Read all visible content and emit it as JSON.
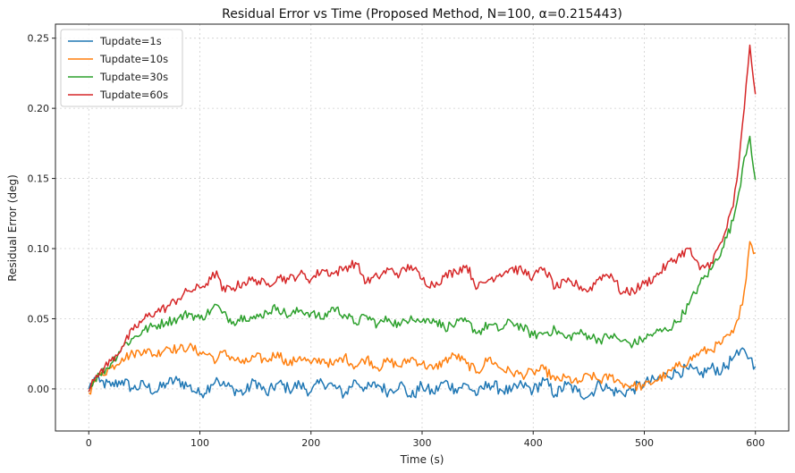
{
  "chart_data": {
    "type": "line",
    "title": "Residual Error vs Time (Proposed Method, N=100, α=0.215443)",
    "xlabel": "Time (s)",
    "ylabel": "Residual Error (deg)",
    "xlim": [
      -30,
      630
    ],
    "ylim": [
      -0.03,
      0.26
    ],
    "xticks": [
      0,
      100,
      200,
      300,
      400,
      500,
      600
    ],
    "xtick_labels": [
      "0",
      "100",
      "200",
      "300",
      "400",
      "500",
      "600"
    ],
    "yticks": [
      0.0,
      0.05,
      0.1,
      0.15,
      0.2,
      0.25
    ],
    "ytick_labels": [
      "0.00",
      "0.05",
      "0.10",
      "0.15",
      "0.20",
      "0.25"
    ],
    "grid": true,
    "legend_position": "top-left",
    "series": [
      {
        "name": "Tupdate=1s",
        "color": "#1f77b4",
        "x": [
          0,
          5,
          10,
          20,
          30,
          40,
          50,
          60,
          70,
          80,
          90,
          100,
          110,
          115,
          120,
          130,
          140,
          150,
          160,
          170,
          180,
          190,
          200,
          210,
          220,
          230,
          240,
          250,
          260,
          270,
          280,
          290,
          300,
          310,
          320,
          330,
          340,
          350,
          360,
          370,
          380,
          390,
          400,
          410,
          420,
          430,
          440,
          450,
          460,
          470,
          480,
          490,
          500,
          510,
          520,
          530,
          540,
          550,
          560,
          570,
          580,
          585,
          590,
          595,
          600
        ],
        "y": [
          0.0,
          0.008,
          0.005,
          0.002,
          0.006,
          0.0,
          0.003,
          -0.002,
          0.004,
          0.006,
          0.002,
          -0.004,
          0.003,
          0.008,
          0.003,
          0.0,
          -0.003,
          0.006,
          -0.004,
          0.004,
          0.0,
          0.003,
          -0.002,
          0.005,
          0.002,
          -0.004,
          0.006,
          0.0,
          0.003,
          -0.002,
          0.004,
          -0.006,
          0.002,
          -0.003,
          0.005,
          0.0,
          0.003,
          -0.004,
          0.004,
          0.0,
          -0.002,
          0.003,
          -0.001,
          0.006,
          -0.004,
          0.003,
          -0.002,
          -0.005,
          0.004,
          -0.001,
          -0.003,
          0.0,
          0.004,
          0.006,
          0.01,
          0.012,
          0.014,
          0.01,
          0.015,
          0.013,
          0.022,
          0.024,
          0.028,
          0.022,
          0.016
        ]
      },
      {
        "name": "Tupdate=10s",
        "color": "#ff7f0e",
        "x": [
          0,
          5,
          10,
          20,
          30,
          40,
          50,
          60,
          70,
          80,
          90,
          100,
          110,
          115,
          120,
          130,
          140,
          150,
          160,
          170,
          180,
          190,
          200,
          210,
          220,
          230,
          240,
          250,
          260,
          270,
          280,
          290,
          300,
          310,
          320,
          330,
          340,
          350,
          360,
          370,
          380,
          390,
          400,
          410,
          420,
          430,
          440,
          450,
          460,
          470,
          480,
          490,
          500,
          510,
          520,
          530,
          540,
          550,
          560,
          570,
          580,
          585,
          590,
          595,
          600
        ],
        "y": [
          -0.003,
          0.005,
          0.01,
          0.015,
          0.022,
          0.025,
          0.028,
          0.024,
          0.03,
          0.028,
          0.03,
          0.026,
          0.024,
          0.02,
          0.026,
          0.022,
          0.018,
          0.023,
          0.02,
          0.026,
          0.017,
          0.023,
          0.018,
          0.021,
          0.017,
          0.023,
          0.016,
          0.022,
          0.015,
          0.02,
          0.016,
          0.022,
          0.018,
          0.014,
          0.02,
          0.024,
          0.018,
          0.012,
          0.022,
          0.015,
          0.012,
          0.01,
          0.012,
          0.014,
          0.006,
          0.008,
          0.004,
          0.01,
          0.006,
          0.009,
          0.004,
          0.002,
          0.002,
          0.006,
          0.01,
          0.016,
          0.02,
          0.026,
          0.028,
          0.033,
          0.04,
          0.05,
          0.07,
          0.105,
          0.097
        ]
      },
      {
        "name": "Tupdate=30s",
        "color": "#2ca02c",
        "x": [
          0,
          5,
          10,
          20,
          30,
          40,
          50,
          60,
          70,
          80,
          90,
          100,
          110,
          115,
          120,
          130,
          140,
          150,
          160,
          170,
          180,
          190,
          200,
          210,
          220,
          230,
          240,
          250,
          260,
          270,
          280,
          290,
          300,
          310,
          320,
          330,
          340,
          350,
          360,
          370,
          380,
          390,
          400,
          410,
          420,
          430,
          440,
          450,
          460,
          470,
          480,
          490,
          500,
          510,
          520,
          530,
          540,
          550,
          560,
          570,
          580,
          585,
          590,
          595,
          600
        ],
        "y": [
          -0.002,
          0.007,
          0.01,
          0.018,
          0.03,
          0.036,
          0.042,
          0.045,
          0.048,
          0.05,
          0.054,
          0.05,
          0.056,
          0.06,
          0.054,
          0.048,
          0.052,
          0.05,
          0.055,
          0.058,
          0.052,
          0.056,
          0.054,
          0.05,
          0.058,
          0.053,
          0.047,
          0.052,
          0.046,
          0.05,
          0.045,
          0.052,
          0.048,
          0.05,
          0.044,
          0.046,
          0.048,
          0.04,
          0.046,
          0.042,
          0.048,
          0.044,
          0.038,
          0.04,
          0.042,
          0.036,
          0.04,
          0.038,
          0.035,
          0.038,
          0.034,
          0.032,
          0.036,
          0.04,
          0.042,
          0.048,
          0.06,
          0.075,
          0.085,
          0.1,
          0.12,
          0.14,
          0.165,
          0.18,
          0.149
        ]
      },
      {
        "name": "Tupdate=60s",
        "color": "#d62728",
        "x": [
          0,
          5,
          10,
          20,
          30,
          40,
          50,
          60,
          70,
          80,
          90,
          100,
          110,
          115,
          120,
          130,
          140,
          150,
          160,
          170,
          180,
          190,
          200,
          210,
          220,
          230,
          240,
          250,
          260,
          270,
          280,
          290,
          300,
          310,
          320,
          330,
          340,
          350,
          360,
          370,
          380,
          390,
          400,
          410,
          420,
          430,
          440,
          450,
          460,
          470,
          480,
          490,
          500,
          510,
          520,
          530,
          540,
          550,
          560,
          570,
          580,
          585,
          590,
          595,
          600
        ],
        "y": [
          -0.002,
          0.006,
          0.012,
          0.02,
          0.03,
          0.042,
          0.05,
          0.055,
          0.058,
          0.064,
          0.07,
          0.072,
          0.078,
          0.084,
          0.07,
          0.072,
          0.076,
          0.078,
          0.074,
          0.08,
          0.078,
          0.082,
          0.078,
          0.085,
          0.082,
          0.086,
          0.09,
          0.076,
          0.08,
          0.085,
          0.082,
          0.088,
          0.078,
          0.074,
          0.08,
          0.084,
          0.088,
          0.072,
          0.078,
          0.082,
          0.086,
          0.084,
          0.08,
          0.086,
          0.072,
          0.076,
          0.074,
          0.07,
          0.08,
          0.082,
          0.068,
          0.07,
          0.075,
          0.08,
          0.088,
          0.094,
          0.1,
          0.085,
          0.09,
          0.105,
          0.13,
          0.16,
          0.2,
          0.245,
          0.21
        ]
      }
    ]
  }
}
